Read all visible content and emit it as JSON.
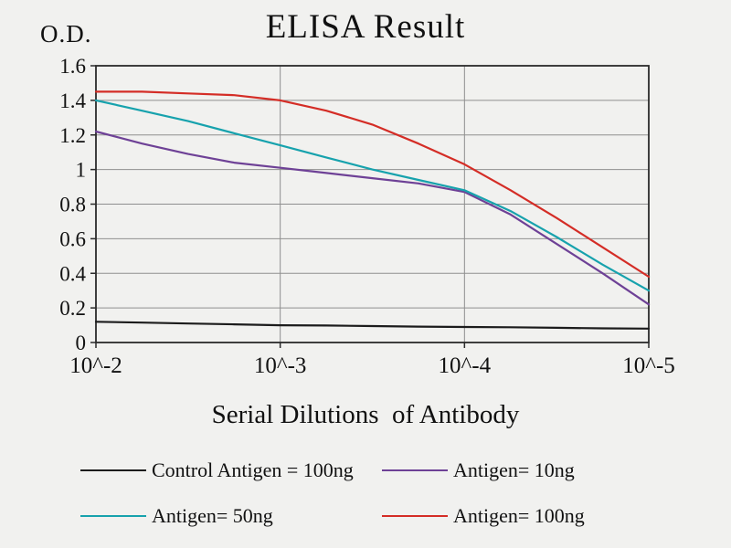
{
  "title": "ELISA Result",
  "od_label": "O.D.",
  "x_axis_title": "Serial Dilutions  of Antibody",
  "chart_data": {
    "type": "line",
    "title": "ELISA Result",
    "xlabel": "Serial Dilutions  of Antibody",
    "ylabel": "O.D.",
    "ylim": [
      0,
      1.6
    ],
    "grid": true,
    "legend_position": "bottom",
    "grid_color": "#8f8f8f",
    "axis_color": "#2b2b2b",
    "y_ticks": [
      0,
      0.2,
      0.4,
      0.6,
      0.8,
      1.0,
      1.2,
      1.4,
      1.6
    ],
    "y_ticklabels": [
      "0",
      "0.2",
      "0.4",
      "0.6",
      "0.8",
      "1",
      "1.2",
      "1.4",
      "1.6"
    ],
    "x_ticks": [
      0,
      1,
      2,
      3
    ],
    "x_ticklabels": [
      "10^-2",
      "10^-3",
      "10^-4",
      "10^-5"
    ],
    "x": [
      0,
      0.25,
      0.5,
      0.75,
      1,
      1.25,
      1.5,
      1.75,
      2,
      2.25,
      2.5,
      2.75,
      3
    ],
    "series": [
      {
        "name": "Control Antigen = 100ng",
        "color": "#1c1c1c",
        "values": [
          0.12,
          0.115,
          0.11,
          0.105,
          0.1,
          0.098,
          0.095,
          0.092,
          0.09,
          0.088,
          0.085,
          0.082,
          0.08
        ]
      },
      {
        "name": "Antigen= 10ng",
        "color": "#6e4196",
        "values": [
          1.22,
          1.15,
          1.09,
          1.04,
          1.01,
          0.98,
          0.95,
          0.92,
          0.87,
          0.74,
          0.57,
          0.4,
          0.22
        ]
      },
      {
        "name": "Antigen= 50ng",
        "color": "#17a2ad",
        "values": [
          1.4,
          1.34,
          1.28,
          1.21,
          1.14,
          1.07,
          1.0,
          0.94,
          0.88,
          0.76,
          0.61,
          0.45,
          0.3
        ]
      },
      {
        "name": "Antigen= 100ng",
        "color": "#d42d26",
        "values": [
          1.45,
          1.45,
          1.44,
          1.43,
          1.4,
          1.34,
          1.26,
          1.15,
          1.03,
          0.88,
          0.72,
          0.55,
          0.38
        ]
      }
    ]
  },
  "legend": {
    "items": [
      {
        "label": "Control Antigen = 100ng",
        "color": "#1c1c1c"
      },
      {
        "label": "Antigen= 10ng",
        "color": "#6e4196"
      },
      {
        "label": "Antigen= 50ng",
        "color": "#17a2ad"
      },
      {
        "label": "Antigen= 100ng",
        "color": "#d42d26"
      }
    ]
  }
}
